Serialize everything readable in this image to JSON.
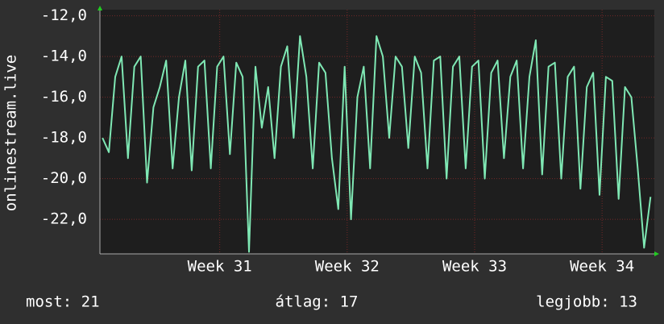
{
  "chart_data": {
    "type": "line",
    "y_label": "onlinestream.live",
    "x": [
      30.08,
      30.13,
      30.18,
      30.23,
      30.28,
      30.33,
      30.38,
      30.43,
      30.48,
      30.53,
      30.58,
      30.63,
      30.68,
      30.73,
      30.78,
      30.83,
      30.88,
      30.93,
      30.98,
      31.03,
      31.08,
      31.13,
      31.18,
      31.23,
      31.28,
      31.33,
      31.38,
      31.43,
      31.48,
      31.53,
      31.58,
      31.63,
      31.68,
      31.73,
      31.78,
      31.83,
      31.88,
      31.93,
      31.98,
      32.03,
      32.08,
      32.13,
      32.18,
      32.23,
      32.28,
      32.33,
      32.38,
      32.43,
      32.48,
      32.53,
      32.58,
      32.63,
      32.68,
      32.73,
      32.78,
      32.83,
      32.88,
      32.93,
      32.98,
      33.03,
      33.08,
      33.13,
      33.18,
      33.23,
      33.28,
      33.33,
      33.38,
      33.43,
      33.48,
      33.53,
      33.58,
      33.63,
      33.68,
      33.73,
      33.78,
      33.83,
      33.88,
      33.93,
      33.98,
      34.03,
      34.08,
      34.13,
      34.18,
      34.23,
      34.28,
      34.33,
      34.38
    ],
    "series": [
      {
        "color": "#7fe8b4",
        "values": [
          -18,
          -18.7,
          -15,
          -14,
          -19,
          -14.5,
          -14,
          -20.2,
          -16.5,
          -15.5,
          -14.2,
          -19.5,
          -16,
          -14.2,
          -19.6,
          -14.5,
          -14.2,
          -19.5,
          -14.5,
          -14,
          -18.8,
          -14.3,
          -15,
          -23.6,
          -14.5,
          -17.5,
          -15.5,
          -19,
          -14.5,
          -13.5,
          -18,
          -13,
          -15,
          -19.5,
          -14.3,
          -14.8,
          -19,
          -21.5,
          -14.5,
          -22,
          -16,
          -14.5,
          -19.5,
          -13,
          -14,
          -18,
          -14,
          -14.5,
          -18.5,
          -14,
          -14.8,
          -19.5,
          -14.2,
          -14,
          -20,
          -14.5,
          -14,
          -19.5,
          -14.5,
          -14.2,
          -20,
          -14.8,
          -14.2,
          -19,
          -15,
          -14.2,
          -19.5,
          -15,
          -13.2,
          -19.8,
          -14.5,
          -14.3,
          -20,
          -15,
          -14.5,
          -20.5,
          -15.5,
          -14.8,
          -20.8,
          -15,
          -15.2,
          -21,
          -15.5,
          -16,
          -19.5,
          -23.4,
          -20.9
        ]
      }
    ],
    "xlim": [
      30.06,
      34.41
    ],
    "xticks": [
      {
        "value": 31,
        "label": "Week 31"
      },
      {
        "value": 32,
        "label": "Week 32"
      },
      {
        "value": 33,
        "label": "Week 33"
      },
      {
        "value": 34,
        "label": "Week 34"
      }
    ],
    "ylim": [
      -23.7,
      -11.7
    ],
    "yticks": [
      {
        "value": -12,
        "label": "-12,0"
      },
      {
        "value": -14,
        "label": "-14,0"
      },
      {
        "value": -16,
        "label": "-16,0"
      },
      {
        "value": -18,
        "label": "-18,0"
      },
      {
        "value": -20,
        "label": "-20,0"
      },
      {
        "value": -22,
        "label": "-22,0"
      }
    ],
    "grid": true,
    "footer": [
      "most: 21",
      "átlag: 17",
      "legjobb: 13"
    ]
  }
}
